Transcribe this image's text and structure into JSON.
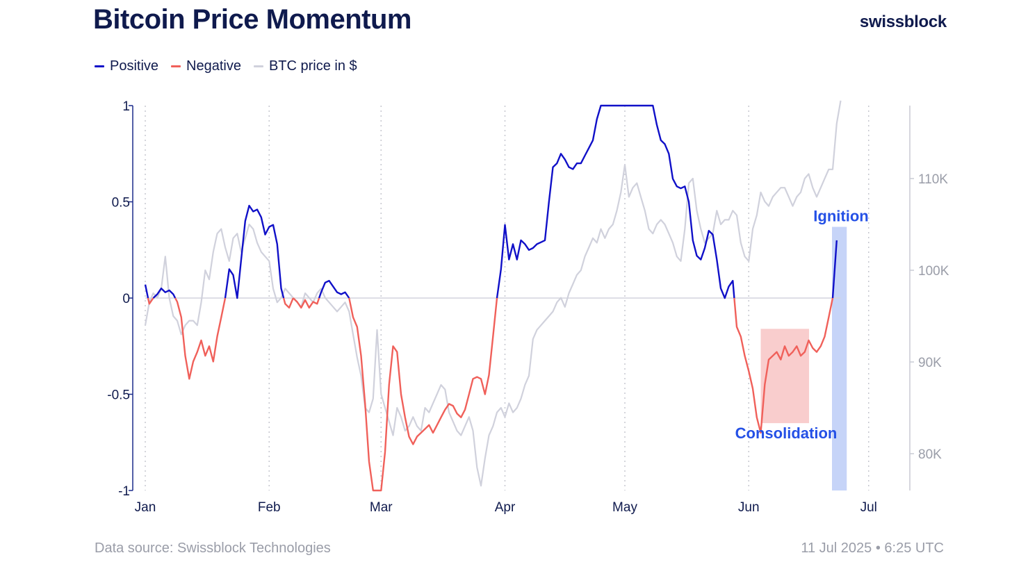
{
  "header": {
    "title": "Bitcoin Price Momentum",
    "brand": "swissblock"
  },
  "footer": {
    "source": "Data source: Swissblock Technologies",
    "timestamp": "11 Jul 2025 • 6:25 UTC"
  },
  "colors": {
    "positive": "#1010c8",
    "negative": "#f0605a",
    "price": "#d0d1dc",
    "consolidation_fill": "#f8c4c4",
    "ignition_fill": "#c3d2f8",
    "annotation": "#2450e6"
  },
  "chart_data": {
    "type": "line",
    "legend": [
      "Positive",
      "Negative",
      "BTC price in $"
    ],
    "legend_placement": "top-left",
    "x_tick_labels": [
      "Jan",
      "Feb",
      "Mar",
      "Apr",
      "May",
      "Jun",
      "Jul"
    ],
    "x_tick_days": [
      0,
      31,
      59,
      90,
      120,
      151,
      181
    ],
    "ylim": [
      -1,
      1
    ],
    "y_tick_labels": [
      "1",
      "0.5",
      "0",
      "-0.5",
      "-1"
    ],
    "y_tick_values": [
      1,
      0.5,
      0,
      -0.5,
      -1
    ],
    "y2lim": [
      76000,
      119000
    ],
    "y2_tick_labels": [
      "110K",
      "100K",
      "90K",
      "80K"
    ],
    "y2_tick_values": [
      110000,
      100000,
      90000,
      80000
    ],
    "grid": "vertical dotted at month ticks",
    "momentum": [
      [
        0,
        0.07
      ],
      [
        1,
        -0.03
      ],
      [
        2,
        0.0
      ],
      [
        3,
        0.02
      ],
      [
        4,
        0.05
      ],
      [
        5,
        0.03
      ],
      [
        6,
        0.04
      ],
      [
        7,
        0.02
      ],
      [
        8,
        -0.02
      ],
      [
        9,
        -0.1
      ],
      [
        10,
        -0.3
      ],
      [
        11,
        -0.42
      ],
      [
        12,
        -0.33
      ],
      [
        13,
        -0.28
      ],
      [
        14,
        -0.22
      ],
      [
        15,
        -0.3
      ],
      [
        16,
        -0.25
      ],
      [
        17,
        -0.33
      ],
      [
        18,
        -0.2
      ],
      [
        19,
        -0.1
      ],
      [
        20,
        0.0
      ],
      [
        21,
        0.15
      ],
      [
        22,
        0.12
      ],
      [
        23,
        0.0
      ],
      [
        24,
        0.2
      ],
      [
        25,
        0.4
      ],
      [
        26,
        0.48
      ],
      [
        27,
        0.45
      ],
      [
        28,
        0.46
      ],
      [
        29,
        0.42
      ],
      [
        30,
        0.33
      ],
      [
        31,
        0.37
      ],
      [
        32,
        0.38
      ],
      [
        33,
        0.28
      ],
      [
        34,
        0.05
      ],
      [
        35,
        -0.03
      ],
      [
        36,
        -0.05
      ],
      [
        37,
        0.0
      ],
      [
        38,
        -0.02
      ],
      [
        39,
        -0.05
      ],
      [
        40,
        -0.01
      ],
      [
        41,
        -0.05
      ],
      [
        42,
        -0.02
      ],
      [
        43,
        -0.03
      ],
      [
        44,
        0.03
      ],
      [
        45,
        0.08
      ],
      [
        46,
        0.09
      ],
      [
        47,
        0.06
      ],
      [
        48,
        0.03
      ],
      [
        49,
        0.02
      ],
      [
        50,
        0.03
      ],
      [
        51,
        0.0
      ],
      [
        52,
        -0.1
      ],
      [
        53,
        -0.15
      ],
      [
        54,
        -0.3
      ],
      [
        55,
        -0.55
      ],
      [
        56,
        -0.85
      ],
      [
        57,
        -1.0
      ],
      [
        58,
        -1.0
      ],
      [
        59,
        -1.0
      ],
      [
        60,
        -0.8
      ],
      [
        61,
        -0.45
      ],
      [
        62,
        -0.25
      ],
      [
        63,
        -0.28
      ],
      [
        64,
        -0.5
      ],
      [
        65,
        -0.62
      ],
      [
        66,
        -0.72
      ],
      [
        67,
        -0.76
      ],
      [
        68,
        -0.72
      ],
      [
        69,
        -0.7
      ],
      [
        70,
        -0.68
      ],
      [
        71,
        -0.66
      ],
      [
        72,
        -0.7
      ],
      [
        73,
        -0.66
      ],
      [
        74,
        -0.62
      ],
      [
        75,
        -0.58
      ],
      [
        76,
        -0.55
      ],
      [
        77,
        -0.56
      ],
      [
        78,
        -0.6
      ],
      [
        79,
        -0.62
      ],
      [
        80,
        -0.58
      ],
      [
        81,
        -0.5
      ],
      [
        82,
        -0.42
      ],
      [
        83,
        -0.41
      ],
      [
        84,
        -0.42
      ],
      [
        85,
        -0.5
      ],
      [
        86,
        -0.4
      ],
      [
        87,
        -0.2
      ],
      [
        88,
        0.0
      ],
      [
        89,
        0.15
      ],
      [
        90,
        0.38
      ],
      [
        91,
        0.2
      ],
      [
        92,
        0.28
      ],
      [
        93,
        0.2
      ],
      [
        94,
        0.3
      ],
      [
        95,
        0.28
      ],
      [
        96,
        0.25
      ],
      [
        97,
        0.26
      ],
      [
        98,
        0.28
      ],
      [
        99,
        0.29
      ],
      [
        100,
        0.3
      ],
      [
        101,
        0.5
      ],
      [
        102,
        0.68
      ],
      [
        103,
        0.7
      ],
      [
        104,
        0.75
      ],
      [
        105,
        0.72
      ],
      [
        106,
        0.68
      ],
      [
        107,
        0.67
      ],
      [
        108,
        0.7
      ],
      [
        109,
        0.7
      ],
      [
        110,
        0.74
      ],
      [
        111,
        0.78
      ],
      [
        112,
        0.82
      ],
      [
        113,
        0.93
      ],
      [
        114,
        1.0
      ],
      [
        115,
        1.0
      ],
      [
        116,
        1.0
      ],
      [
        117,
        1.0
      ],
      [
        118,
        1.0
      ],
      [
        119,
        1.0
      ],
      [
        120,
        1.0
      ],
      [
        121,
        1.0
      ],
      [
        122,
        1.0
      ],
      [
        123,
        1.0
      ],
      [
        124,
        1.0
      ],
      [
        125,
        1.0
      ],
      [
        126,
        1.0
      ],
      [
        127,
        1.0
      ],
      [
        128,
        0.9
      ],
      [
        129,
        0.82
      ],
      [
        130,
        0.8
      ],
      [
        131,
        0.75
      ],
      [
        132,
        0.62
      ],
      [
        133,
        0.58
      ],
      [
        134,
        0.57
      ],
      [
        135,
        0.58
      ],
      [
        136,
        0.5
      ],
      [
        137,
        0.3
      ],
      [
        138,
        0.22
      ],
      [
        139,
        0.2
      ],
      [
        140,
        0.26
      ],
      [
        141,
        0.35
      ],
      [
        142,
        0.33
      ],
      [
        143,
        0.2
      ],
      [
        144,
        0.05
      ],
      [
        145,
        0.0
      ],
      [
        146,
        0.06
      ],
      [
        147,
        0.09
      ],
      [
        148,
        -0.15
      ],
      [
        149,
        -0.2
      ],
      [
        150,
        -0.3
      ],
      [
        151,
        -0.38
      ],
      [
        152,
        -0.47
      ],
      [
        153,
        -0.62
      ],
      [
        154,
        -0.7
      ],
      [
        155,
        -0.45
      ],
      [
        156,
        -0.32
      ],
      [
        157,
        -0.3
      ],
      [
        158,
        -0.28
      ],
      [
        159,
        -0.32
      ],
      [
        160,
        -0.25
      ],
      [
        161,
        -0.3
      ],
      [
        162,
        -0.28
      ],
      [
        163,
        -0.25
      ],
      [
        164,
        -0.3
      ],
      [
        165,
        -0.28
      ],
      [
        166,
        -0.22
      ],
      [
        167,
        -0.26
      ],
      [
        168,
        -0.28
      ],
      [
        169,
        -0.25
      ],
      [
        170,
        -0.2
      ],
      [
        171,
        -0.1
      ],
      [
        172,
        0.0
      ],
      [
        173,
        0.3
      ]
    ],
    "btc_price": [
      [
        0,
        94000
      ],
      [
        1,
        96500
      ],
      [
        2,
        97500
      ],
      [
        3,
        97000
      ],
      [
        4,
        98000
      ],
      [
        5,
        101500
      ],
      [
        6,
        97000
      ],
      [
        7,
        95000
      ],
      [
        8,
        94500
      ],
      [
        9,
        93000
      ],
      [
        10,
        94000
      ],
      [
        11,
        94500
      ],
      [
        12,
        94500
      ],
      [
        13,
        94000
      ],
      [
        14,
        96500
      ],
      [
        15,
        100000
      ],
      [
        16,
        99000
      ],
      [
        17,
        102000
      ],
      [
        18,
        104000
      ],
      [
        19,
        104500
      ],
      [
        20,
        102500
      ],
      [
        21,
        101000
      ],
      [
        22,
        103500
      ],
      [
        23,
        104000
      ],
      [
        24,
        102000
      ],
      [
        25,
        103500
      ],
      [
        26,
        105000
      ],
      [
        27,
        104500
      ],
      [
        28,
        103000
      ],
      [
        29,
        102000
      ],
      [
        30,
        101500
      ],
      [
        31,
        101000
      ],
      [
        32,
        98000
      ],
      [
        33,
        96500
      ],
      [
        34,
        97000
      ],
      [
        35,
        98000
      ],
      [
        36,
        97500
      ],
      [
        37,
        97000
      ],
      [
        38,
        96500
      ],
      [
        39,
        96000
      ],
      [
        40,
        97500
      ],
      [
        41,
        97000
      ],
      [
        42,
        96500
      ],
      [
        43,
        97500
      ],
      [
        44,
        98000
      ],
      [
        45,
        97000
      ],
      [
        46,
        96500
      ],
      [
        47,
        96000
      ],
      [
        48,
        95500
      ],
      [
        49,
        96000
      ],
      [
        50,
        96500
      ],
      [
        51,
        95500
      ],
      [
        52,
        93000
      ],
      [
        53,
        90500
      ],
      [
        54,
        88500
      ],
      [
        55,
        85000
      ],
      [
        56,
        84500
      ],
      [
        57,
        86000
      ],
      [
        58,
        93500
      ],
      [
        59,
        86500
      ],
      [
        60,
        85000
      ],
      [
        61,
        83500
      ],
      [
        62,
        82000
      ],
      [
        63,
        85000
      ],
      [
        64,
        84000
      ],
      [
        65,
        82500
      ],
      [
        66,
        83000
      ],
      [
        67,
        84000
      ],
      [
        68,
        83000
      ],
      [
        69,
        82500
      ],
      [
        70,
        85000
      ],
      [
        71,
        84500
      ],
      [
        72,
        85500
      ],
      [
        73,
        86500
      ],
      [
        74,
        87500
      ],
      [
        75,
        87000
      ],
      [
        76,
        84500
      ],
      [
        77,
        83500
      ],
      [
        78,
        82500
      ],
      [
        79,
        82000
      ],
      [
        80,
        83000
      ],
      [
        81,
        84000
      ],
      [
        82,
        82500
      ],
      [
        83,
        78500
      ],
      [
        84,
        76500
      ],
      [
        85,
        79500
      ],
      [
        86,
        82000
      ],
      [
        87,
        83000
      ],
      [
        88,
        84500
      ],
      [
        89,
        85000
      ],
      [
        90,
        84000
      ],
      [
        91,
        85500
      ],
      [
        92,
        84500
      ],
      [
        93,
        85000
      ],
      [
        94,
        86000
      ],
      [
        95,
        87500
      ],
      [
        96,
        88500
      ],
      [
        97,
        92500
      ],
      [
        98,
        93500
      ],
      [
        99,
        94000
      ],
      [
        100,
        94500
      ],
      [
        101,
        95000
      ],
      [
        102,
        95500
      ],
      [
        103,
        96500
      ],
      [
        104,
        97000
      ],
      [
        105,
        96000
      ],
      [
        106,
        97500
      ],
      [
        107,
        98500
      ],
      [
        108,
        99500
      ],
      [
        109,
        100000
      ],
      [
        110,
        101500
      ],
      [
        111,
        102500
      ],
      [
        112,
        103500
      ],
      [
        113,
        103000
      ],
      [
        114,
        104500
      ],
      [
        115,
        103500
      ],
      [
        116,
        104500
      ],
      [
        117,
        105000
      ],
      [
        118,
        106500
      ],
      [
        119,
        108500
      ],
      [
        120,
        111500
      ],
      [
        121,
        108000
      ],
      [
        122,
        109000
      ],
      [
        123,
        109500
      ],
      [
        124,
        108000
      ],
      [
        125,
        106500
      ],
      [
        126,
        104500
      ],
      [
        127,
        104000
      ],
      [
        128,
        105000
      ],
      [
        129,
        105500
      ],
      [
        130,
        105000
      ],
      [
        131,
        104000
      ],
      [
        132,
        103000
      ],
      [
        133,
        101500
      ],
      [
        134,
        101000
      ],
      [
        135,
        104500
      ],
      [
        136,
        109500
      ],
      [
        137,
        110000
      ],
      [
        138,
        106500
      ],
      [
        139,
        104500
      ],
      [
        140,
        103000
      ],
      [
        141,
        103500
      ],
      [
        142,
        104000
      ],
      [
        143,
        106500
      ],
      [
        144,
        105000
      ],
      [
        145,
        105500
      ],
      [
        146,
        105500
      ],
      [
        147,
        106500
      ],
      [
        148,
        106000
      ],
      [
        149,
        103000
      ],
      [
        150,
        101500
      ],
      [
        151,
        101000
      ],
      [
        152,
        104500
      ],
      [
        153,
        106000
      ],
      [
        154,
        108500
      ],
      [
        155,
        107500
      ],
      [
        156,
        107000
      ],
      [
        157,
        108000
      ],
      [
        158,
        108500
      ],
      [
        159,
        109000
      ],
      [
        160,
        109000
      ],
      [
        161,
        108000
      ],
      [
        162,
        107000
      ],
      [
        163,
        108000
      ],
      [
        164,
        108500
      ],
      [
        165,
        110000
      ],
      [
        166,
        110500
      ],
      [
        167,
        109000
      ],
      [
        168,
        108000
      ],
      [
        169,
        109000
      ],
      [
        170,
        110000
      ],
      [
        171,
        111000
      ],
      [
        172,
        111000
      ],
      [
        173,
        116000
      ],
      [
        174,
        118500
      ]
    ],
    "annotations": [
      {
        "label": "Consolidation",
        "x_days": [
          154,
          166
        ],
        "y": [
          -0.65,
          -0.16
        ]
      },
      {
        "label": "Ignition",
        "x_days": [
          172,
          175
        ],
        "y": [
          -1,
          0.37
        ]
      }
    ]
  }
}
